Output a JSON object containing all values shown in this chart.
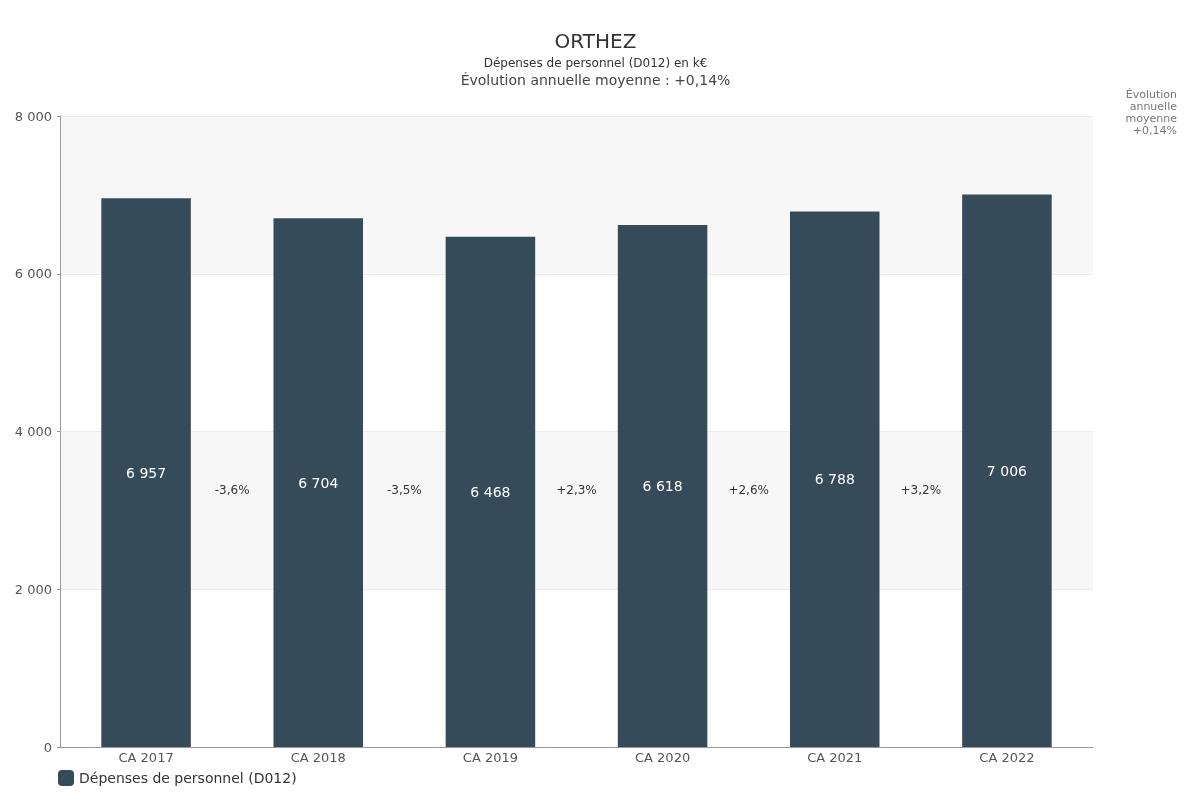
{
  "chart_data": {
    "type": "bar",
    "title": "ORTHEZ",
    "subtitle": "Dépenses de personnel (D012) en k€\nÉvolution annuelle moyenne : +0,14%",
    "categories": [
      "CA 2017",
      "CA 2018",
      "CA 2019",
      "CA 2020",
      "CA 2021",
      "CA 2022"
    ],
    "series": [
      {
        "name": "Dépenses de personnel (D012)",
        "color": "#364b5a",
        "values": [
          6957,
          6704,
          6468,
          6618,
          6788,
          7006
        ]
      }
    ],
    "ylim": [
      0,
      8000
    ],
    "yticks": [
      {
        "value": 0,
        "label": "0"
      },
      {
        "value": 2000,
        "label": "2 000"
      },
      {
        "value": 4000,
        "label": "4 000"
      },
      {
        "value": 6000,
        "label": "6 000"
      },
      {
        "value": 8000,
        "label": "8 000"
      }
    ],
    "grid": "y",
    "legend": "bottom left",
    "data_labels": true,
    "annotations": [
      "-3,6%",
      "-3,5%",
      "+2,3%",
      "+2,6%",
      "+3,2%",
      "Évolution\nannuelle\nmoyenne\n+0,14%"
    ]
  }
}
